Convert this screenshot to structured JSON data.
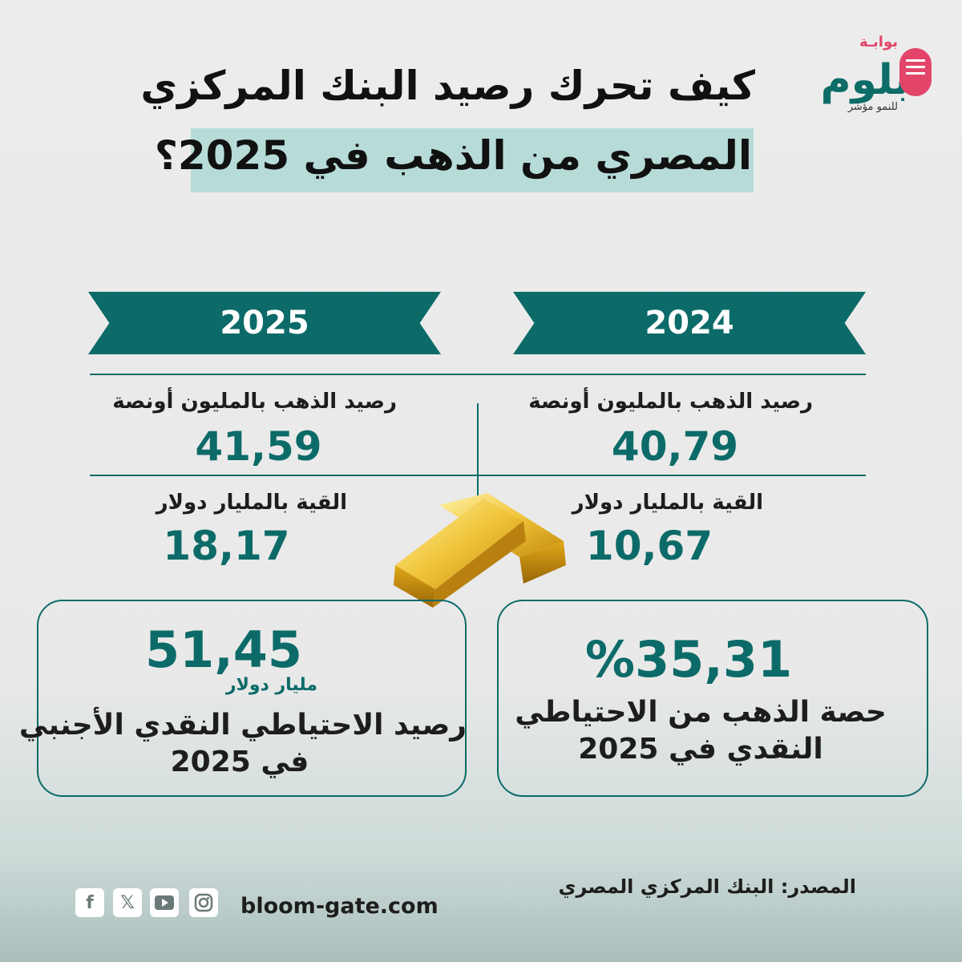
{
  "logo": {
    "small_text": "بوابـة",
    "main_text": "بلوم",
    "tagline": "للنمو مؤشر"
  },
  "title": {
    "line1": "كيف تحرك رصيد البنك المركزي",
    "line2": "المصري من الذهب في 2025؟"
  },
  "columns": [
    {
      "year": "2025",
      "gold_label": "رصيد الذهب بالمليون أونصة",
      "gold_value": "41,59",
      "value_label": "القية بالمليار دولار",
      "value_value": "18,17"
    },
    {
      "year": "2024",
      "gold_label": "رصيد الذهب بالمليون أونصة",
      "gold_value": "40,79",
      "value_label": "القية بالمليار دولار",
      "value_value": "10,67"
    }
  ],
  "boxes": {
    "left": {
      "value": "51,45",
      "unit": "مليار دولار",
      "line1": "رصيد الاحتياطي النقدي الأجنبي",
      "line2": "في 2025"
    },
    "right": {
      "value": "%35,31",
      "line1": "حصة الذهب من الاحتياطي",
      "line2": "النقدي في 2025"
    }
  },
  "footer": {
    "website": "bloom-gate.com",
    "source": "المصدر: البنك المركزي المصري",
    "social_icons": [
      "facebook-icon",
      "x-icon",
      "youtube-icon",
      "instagram-icon"
    ]
  },
  "colors": {
    "accent": "#0c6b68",
    "brand_pink": "#e3456a",
    "title_highlight": "#b7dcd8",
    "gold": "#d9a81e"
  }
}
